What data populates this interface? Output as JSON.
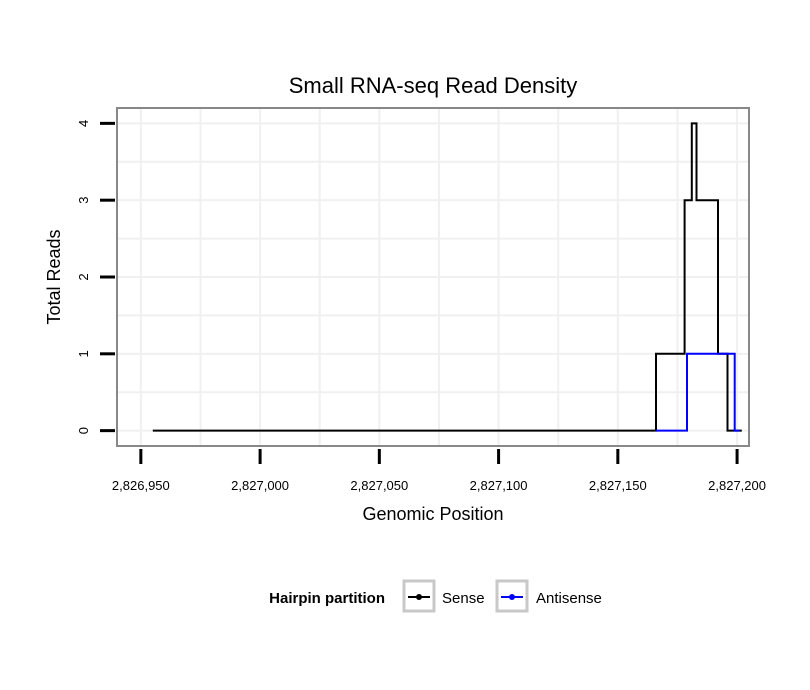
{
  "chart_data": {
    "type": "line",
    "title": "Small RNA-seq Read Density",
    "xlabel": "Genomic Position",
    "ylabel": "Total Reads",
    "xlim": [
      2826940,
      2827205
    ],
    "ylim": [
      -0.2,
      4.2
    ],
    "x_ticks": [
      2826950,
      2827000,
      2827050,
      2827100,
      2827150,
      2827200
    ],
    "x_tick_labels": [
      "2,826,950",
      "2,827,000",
      "2,827,050",
      "2,827,100",
      "2,827,150",
      "2,827,200"
    ],
    "y_ticks": [
      0,
      1,
      2,
      3,
      4
    ],
    "y_tick_labels": [
      "0",
      "1",
      "2",
      "3",
      "4"
    ],
    "grid": true,
    "legend": {
      "title": "Hairpin partition",
      "position": "bottom",
      "entries": [
        "Sense",
        "Antisense"
      ]
    },
    "series": [
      {
        "name": "Sense",
        "color": "#000000",
        "x": [
          2826955,
          2827166,
          2827166,
          2827178,
          2827178,
          2827181,
          2827181,
          2827183,
          2827183,
          2827192,
          2827192,
          2827196,
          2827196,
          2827200,
          2827200,
          2827202
        ],
        "y": [
          0,
          0,
          1,
          1,
          3,
          3,
          4,
          4,
          3,
          3,
          1,
          1,
          0,
          0,
          0,
          0
        ]
      },
      {
        "name": "Antisense",
        "color": "#0000ff",
        "x": [
          2827166,
          2827179,
          2827179,
          2827199,
          2827199,
          2827201
        ],
        "y": [
          0,
          0,
          1,
          1,
          0,
          0
        ]
      }
    ]
  }
}
